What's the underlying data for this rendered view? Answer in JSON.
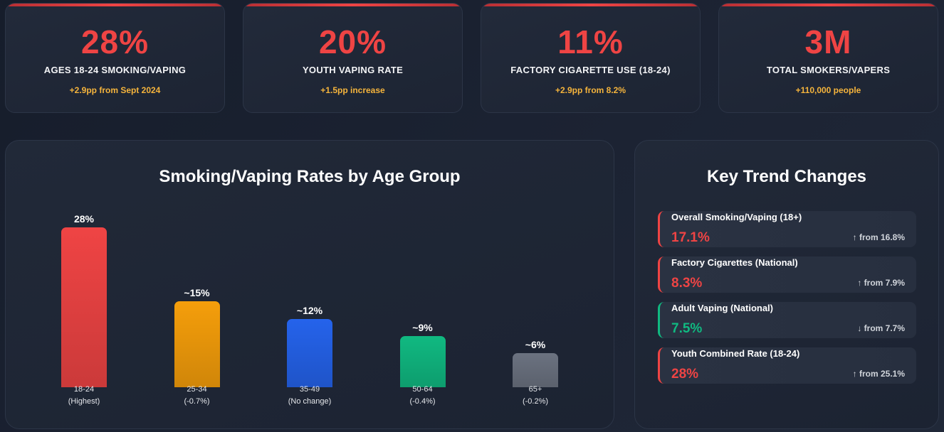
{
  "stats": [
    {
      "value": "28%",
      "label": "AGES 18-24 SMOKING/VAPING",
      "change": "+2.9pp from Sept 2024"
    },
    {
      "value": "20%",
      "label": "YOUTH VAPING RATE",
      "change": "+1.5pp increase"
    },
    {
      "value": "11%",
      "label": "FACTORY CIGARETTE USE (18-24)",
      "change": "+2.9pp from 8.2%"
    },
    {
      "value": "3M",
      "label": "TOTAL SMOKERS/VAPERS",
      "change": "+110,000 people"
    }
  ],
  "age_chart": {
    "title": "Smoking/Vaping Rates by Age Group",
    "chart_data": {
      "type": "bar",
      "title": "Smoking/Vaping Rates by Age Group",
      "categories": [
        "18-24",
        "25-34",
        "35-49",
        "50-64",
        "65+"
      ],
      "values": [
        28,
        15,
        12,
        9,
        6
      ],
      "value_labels": [
        "28%",
        "~15%",
        "~12%",
        "~9%",
        "~6%"
      ],
      "notes": [
        "(Highest)",
        "(-0.7%)",
        "(No change)",
        "(-0.4%)",
        "(-0.2%)"
      ],
      "colors": [
        "#ef4444",
        "#f59e0b",
        "#2563eb",
        "#10b981",
        "#6b7280"
      ]
    }
  },
  "trends": {
    "title": "Key Trend Changes",
    "items": [
      {
        "title": "Overall Smoking/Vaping (18+)",
        "value": "17.1%",
        "change": "↑ from 16.8%",
        "status": "up"
      },
      {
        "title": "Factory Cigarettes (National)",
        "value": "8.3%",
        "change": "↑ from 7.9%",
        "status": "up"
      },
      {
        "title": "Adult Vaping (National)",
        "value": "7.5%",
        "change": "↓ from 7.7%",
        "status": "down"
      },
      {
        "title": "Youth Combined Rate (18-24)",
        "value": "28%",
        "change": "↑ from 25.1%",
        "status": "up"
      }
    ]
  }
}
